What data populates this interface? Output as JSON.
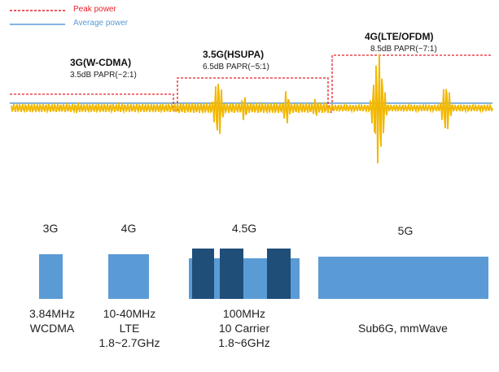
{
  "legend": {
    "peak": {
      "label": "Peak power",
      "color": "#e8212b"
    },
    "average": {
      "label": "Average power",
      "color": "#5b9bd5"
    }
  },
  "signal_color": "#f2b800",
  "sections": [
    {
      "title": "3G(W-CDMA)",
      "subtitle": "3.5dB PAPR(~2:1)"
    },
    {
      "title": "3.5G(HSUPA)",
      "subtitle": "6.5dB PAPR(~5:1)"
    },
    {
      "title": "4G(LTE/OFDM)",
      "subtitle": "8.5dB PAPR(~7:1)"
    }
  ],
  "generations": [
    {
      "label": "3G",
      "lines": [
        "3.84MHz",
        "WCDMA"
      ]
    },
    {
      "label": "4G",
      "lines": [
        "10-40MHz",
        "LTE",
        "1.8~2.7GHz"
      ]
    },
    {
      "label": "4.5G",
      "lines": [
        "100MHz",
        "10 Carrier",
        "1.8~6GHz"
      ]
    },
    {
      "label": "5G",
      "lines": [
        "Sub6G, mmWave"
      ]
    }
  ]
}
